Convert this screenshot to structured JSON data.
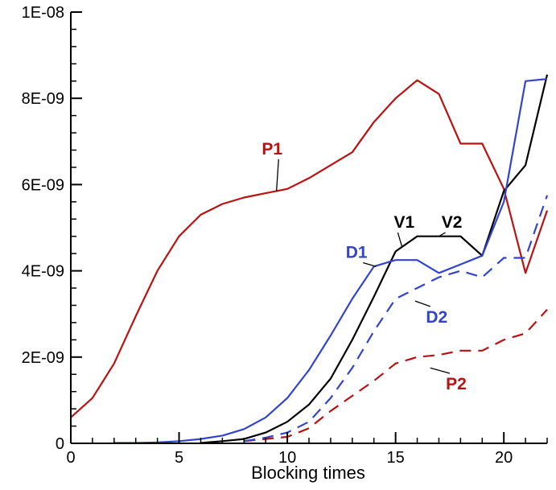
{
  "chart_data": {
    "type": "line",
    "title": "",
    "xlabel": "Blocking times",
    "ylabel": "",
    "xlim": [
      0,
      22
    ],
    "ylim": [
      0,
      1e-08
    ],
    "x_ticks": [
      0,
      5,
      10,
      15,
      20
    ],
    "y_ticks": [
      0,
      2e-09,
      4e-09,
      6e-09,
      8e-09,
      1e-08
    ],
    "x_tick_labels": [
      "0",
      "5",
      "10",
      "15",
      "20"
    ],
    "y_tick_labels": [
      "0",
      "2E-09",
      "4E-09",
      "6E-09",
      "8E-09",
      "1E-08"
    ],
    "grid": false,
    "series": [
      {
        "name": "P1",
        "color": "#bb1111",
        "dash": "solid",
        "x": [
          0,
          1,
          2,
          3,
          4,
          5,
          6,
          7,
          8,
          9,
          10,
          11,
          12,
          13,
          14,
          15,
          16,
          17,
          18,
          19,
          20,
          21,
          22
        ],
        "y": [
          6e-10,
          1.05e-09,
          1.85e-09,
          2.95e-09,
          4e-09,
          4.8e-09,
          5.3e-09,
          5.55e-09,
          5.7e-09,
          5.8e-09,
          5.9e-09,
          6.15e-09,
          6.45e-09,
          6.75e-09,
          7.45e-09,
          8e-09,
          8.42e-09,
          8.1e-09,
          6.95e-09,
          6.95e-09,
          5.9e-09,
          3.95e-09,
          5.4e-09
        ]
      },
      {
        "name": "P2",
        "color": "#bb1111",
        "dash": "dashed",
        "x": [
          8,
          9,
          10,
          11,
          12,
          13,
          14,
          15,
          16,
          17,
          18,
          19,
          20,
          21,
          22
        ],
        "y": [
          5e-11,
          1e-10,
          1.5e-10,
          3.5e-10,
          7.5e-10,
          1.1e-09,
          1.45e-09,
          1.85e-09,
          2e-09,
          2.05e-09,
          2.15e-09,
          2.15e-09,
          2.4e-09,
          2.55e-09,
          3.1e-09
        ]
      },
      {
        "name": "V1",
        "color": "#000000",
        "dash": "solid",
        "x": [
          6,
          7,
          8,
          9,
          10,
          11,
          12,
          13,
          14,
          15,
          16,
          17,
          18,
          19,
          20,
          21,
          22
        ],
        "y": [
          1e-11,
          5e-11,
          1e-10,
          2.5e-10,
          5e-10,
          9e-10,
          1.5e-09,
          2.4e-09,
          3.4e-09,
          4.45e-09,
          4.8e-09,
          4.8e-09,
          4.8e-09,
          4.35e-09,
          5.85e-09,
          6.45e-09,
          8.55e-09
        ]
      },
      {
        "name": "D1",
        "color": "#3344cc",
        "dash": "solid",
        "x": [
          2,
          3,
          4,
          5,
          6,
          7,
          8,
          9,
          10,
          11,
          12,
          13,
          14,
          15,
          16,
          17,
          18,
          19,
          20,
          21,
          22
        ],
        "y": [
          1e-11,
          1e-11,
          2e-11,
          5e-11,
          1e-10,
          1.8e-10,
          3.3e-10,
          6e-10,
          1.05e-09,
          1.7e-09,
          2.5e-09,
          3.35e-09,
          4.1e-09,
          4.25e-09,
          4.25e-09,
          3.95e-09,
          4.15e-09,
          4.35e-09,
          5.6e-09,
          8.4e-09,
          8.45e-09
        ]
      },
      {
        "name": "D2",
        "color": "#3344cc",
        "dash": "dashed",
        "x": [
          8,
          9,
          10,
          11,
          12,
          13,
          14,
          15,
          16,
          17,
          18,
          19,
          20,
          21,
          22
        ],
        "y": [
          5e-11,
          1.3e-10,
          2.5e-10,
          5e-10,
          1.05e-09,
          1.75e-09,
          2.6e-09,
          3.35e-09,
          3.6e-09,
          3.85e-09,
          4e-09,
          3.85e-09,
          4.3e-09,
          4.3e-09,
          5.75e-09
        ]
      }
    ],
    "annotations": [
      {
        "text": "P1",
        "color": "#bb1111",
        "at": [
          9.3,
          6.7
        ],
        "leader_to": [
          9.5,
          5.85
        ]
      },
      {
        "text": "V1",
        "color": "#000000",
        "at": [
          15.4,
          5.0
        ],
        "leader_to": [
          15.3,
          4.55
        ]
      },
      {
        "text": "V2",
        "color": "#000000",
        "at": [
          17.6,
          5.0
        ],
        "leader_to": [
          17.0,
          4.8
        ]
      },
      {
        "text": "D1",
        "color": "#3344cc",
        "at": [
          13.2,
          4.3
        ],
        "leader_to": [
          14.1,
          4.1
        ]
      },
      {
        "text": "D2",
        "color": "#3344cc",
        "at": [
          16.9,
          2.8
        ],
        "leader_to": [
          15.9,
          3.3
        ]
      },
      {
        "text": "P2",
        "color": "#bb1111",
        "at": [
          17.8,
          1.25
        ],
        "leader_to": [
          16.6,
          1.75
        ]
      }
    ]
  }
}
